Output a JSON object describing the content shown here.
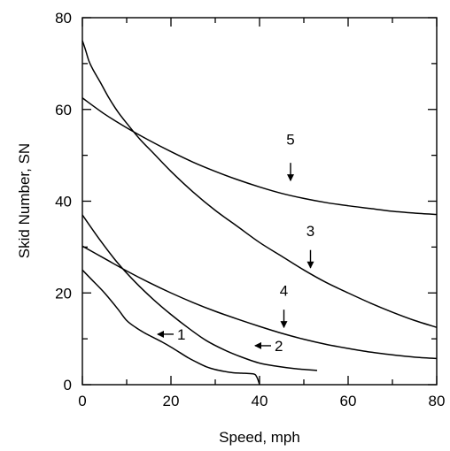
{
  "chart_data": {
    "type": "line",
    "title": "",
    "xlabel": "Speed, mph",
    "ylabel": "Skid Number, SN",
    "xlim": [
      0,
      80
    ],
    "ylim": [
      0,
      80
    ],
    "x_ticks": [
      0,
      20,
      40,
      60,
      80
    ],
    "y_ticks": [
      0,
      20,
      40,
      60,
      80
    ],
    "x_tick_labels": [
      "0",
      "20",
      "40",
      "60",
      "80"
    ],
    "y_tick_labels": [
      "0",
      "20",
      "40",
      "60",
      "80"
    ],
    "grid": false,
    "legend": "none",
    "line_color": "#000000",
    "series": [
      {
        "label": "1",
        "x": [
          0,
          2,
          5,
          8,
          10,
          12,
          14,
          16,
          18,
          20,
          22,
          24,
          26,
          28,
          30,
          32,
          34,
          36,
          38,
          39,
          39.6,
          40
        ],
        "y": [
          25,
          23,
          20,
          16.5,
          14,
          12.5,
          11.3,
          10.3,
          9.3,
          8.2,
          7,
          5.8,
          4.8,
          3.9,
          3.3,
          2.9,
          2.6,
          2.5,
          2.4,
          2.2,
          1.2,
          0
        ]
      },
      {
        "label": "2",
        "x": [
          0,
          4,
          8,
          12,
          16,
          20,
          24,
          28,
          32,
          36,
          40,
          44,
          48,
          53
        ],
        "y": [
          37,
          31.5,
          26.5,
          22.3,
          18.6,
          15.3,
          12.3,
          9.6,
          7.6,
          6,
          4.7,
          4,
          3.5,
          3.1
        ]
      },
      {
        "label": "3",
        "x": [
          0,
          0.7,
          1.5,
          2.5,
          4,
          6,
          8,
          10,
          13,
          16,
          20,
          25,
          30,
          35,
          40,
          45,
          50,
          55,
          60,
          65,
          70,
          75,
          80
        ],
        "y": [
          75,
          73,
          70.5,
          68.5,
          66,
          62.5,
          59.5,
          57,
          53.5,
          50.5,
          46.5,
          42,
          38,
          34.5,
          31,
          28,
          25,
          22.3,
          20,
          17.8,
          15.8,
          14,
          12.5
        ]
      },
      {
        "label": "4",
        "x": [
          0,
          5,
          10,
          15,
          20,
          25,
          30,
          35,
          40,
          45,
          50,
          55,
          60,
          65,
          70,
          75,
          80
        ],
        "y": [
          30.2,
          27.5,
          24.8,
          22.3,
          20,
          17.9,
          16,
          14.3,
          12.7,
          11.2,
          9.9,
          8.8,
          7.9,
          7.1,
          6.5,
          6,
          5.7
        ]
      },
      {
        "label": "5",
        "x": [
          0,
          5,
          10,
          15,
          20,
          25,
          30,
          35,
          40,
          45,
          50,
          55,
          60,
          65,
          70,
          75,
          80
        ],
        "y": [
          62.5,
          59,
          56,
          53.3,
          50.8,
          48.5,
          46.5,
          44.7,
          43.1,
          41.7,
          40.6,
          39.7,
          39,
          38.4,
          37.8,
          37.4,
          37.1
        ]
      }
    ],
    "annotations": [
      {
        "text": "1",
        "target": [
          17,
          11
        ],
        "arrow": "left",
        "text_at": [
          23,
          11
        ]
      },
      {
        "text": "2",
        "target": [
          39,
          8.5
        ],
        "arrow": "left",
        "text_at": [
          45.5,
          8.5
        ]
      },
      {
        "text": "3",
        "target": [
          51.5,
          25.5
        ],
        "arrow": "down",
        "text_at": [
          51.5,
          33.5
        ]
      },
      {
        "text": "4",
        "target": [
          45.5,
          12.5
        ],
        "arrow": "down",
        "text_at": [
          45.5,
          20.5
        ]
      },
      {
        "text": "5",
        "target": [
          47,
          44.5
        ],
        "arrow": "down",
        "text_at": [
          47,
          53.5
        ]
      }
    ]
  }
}
